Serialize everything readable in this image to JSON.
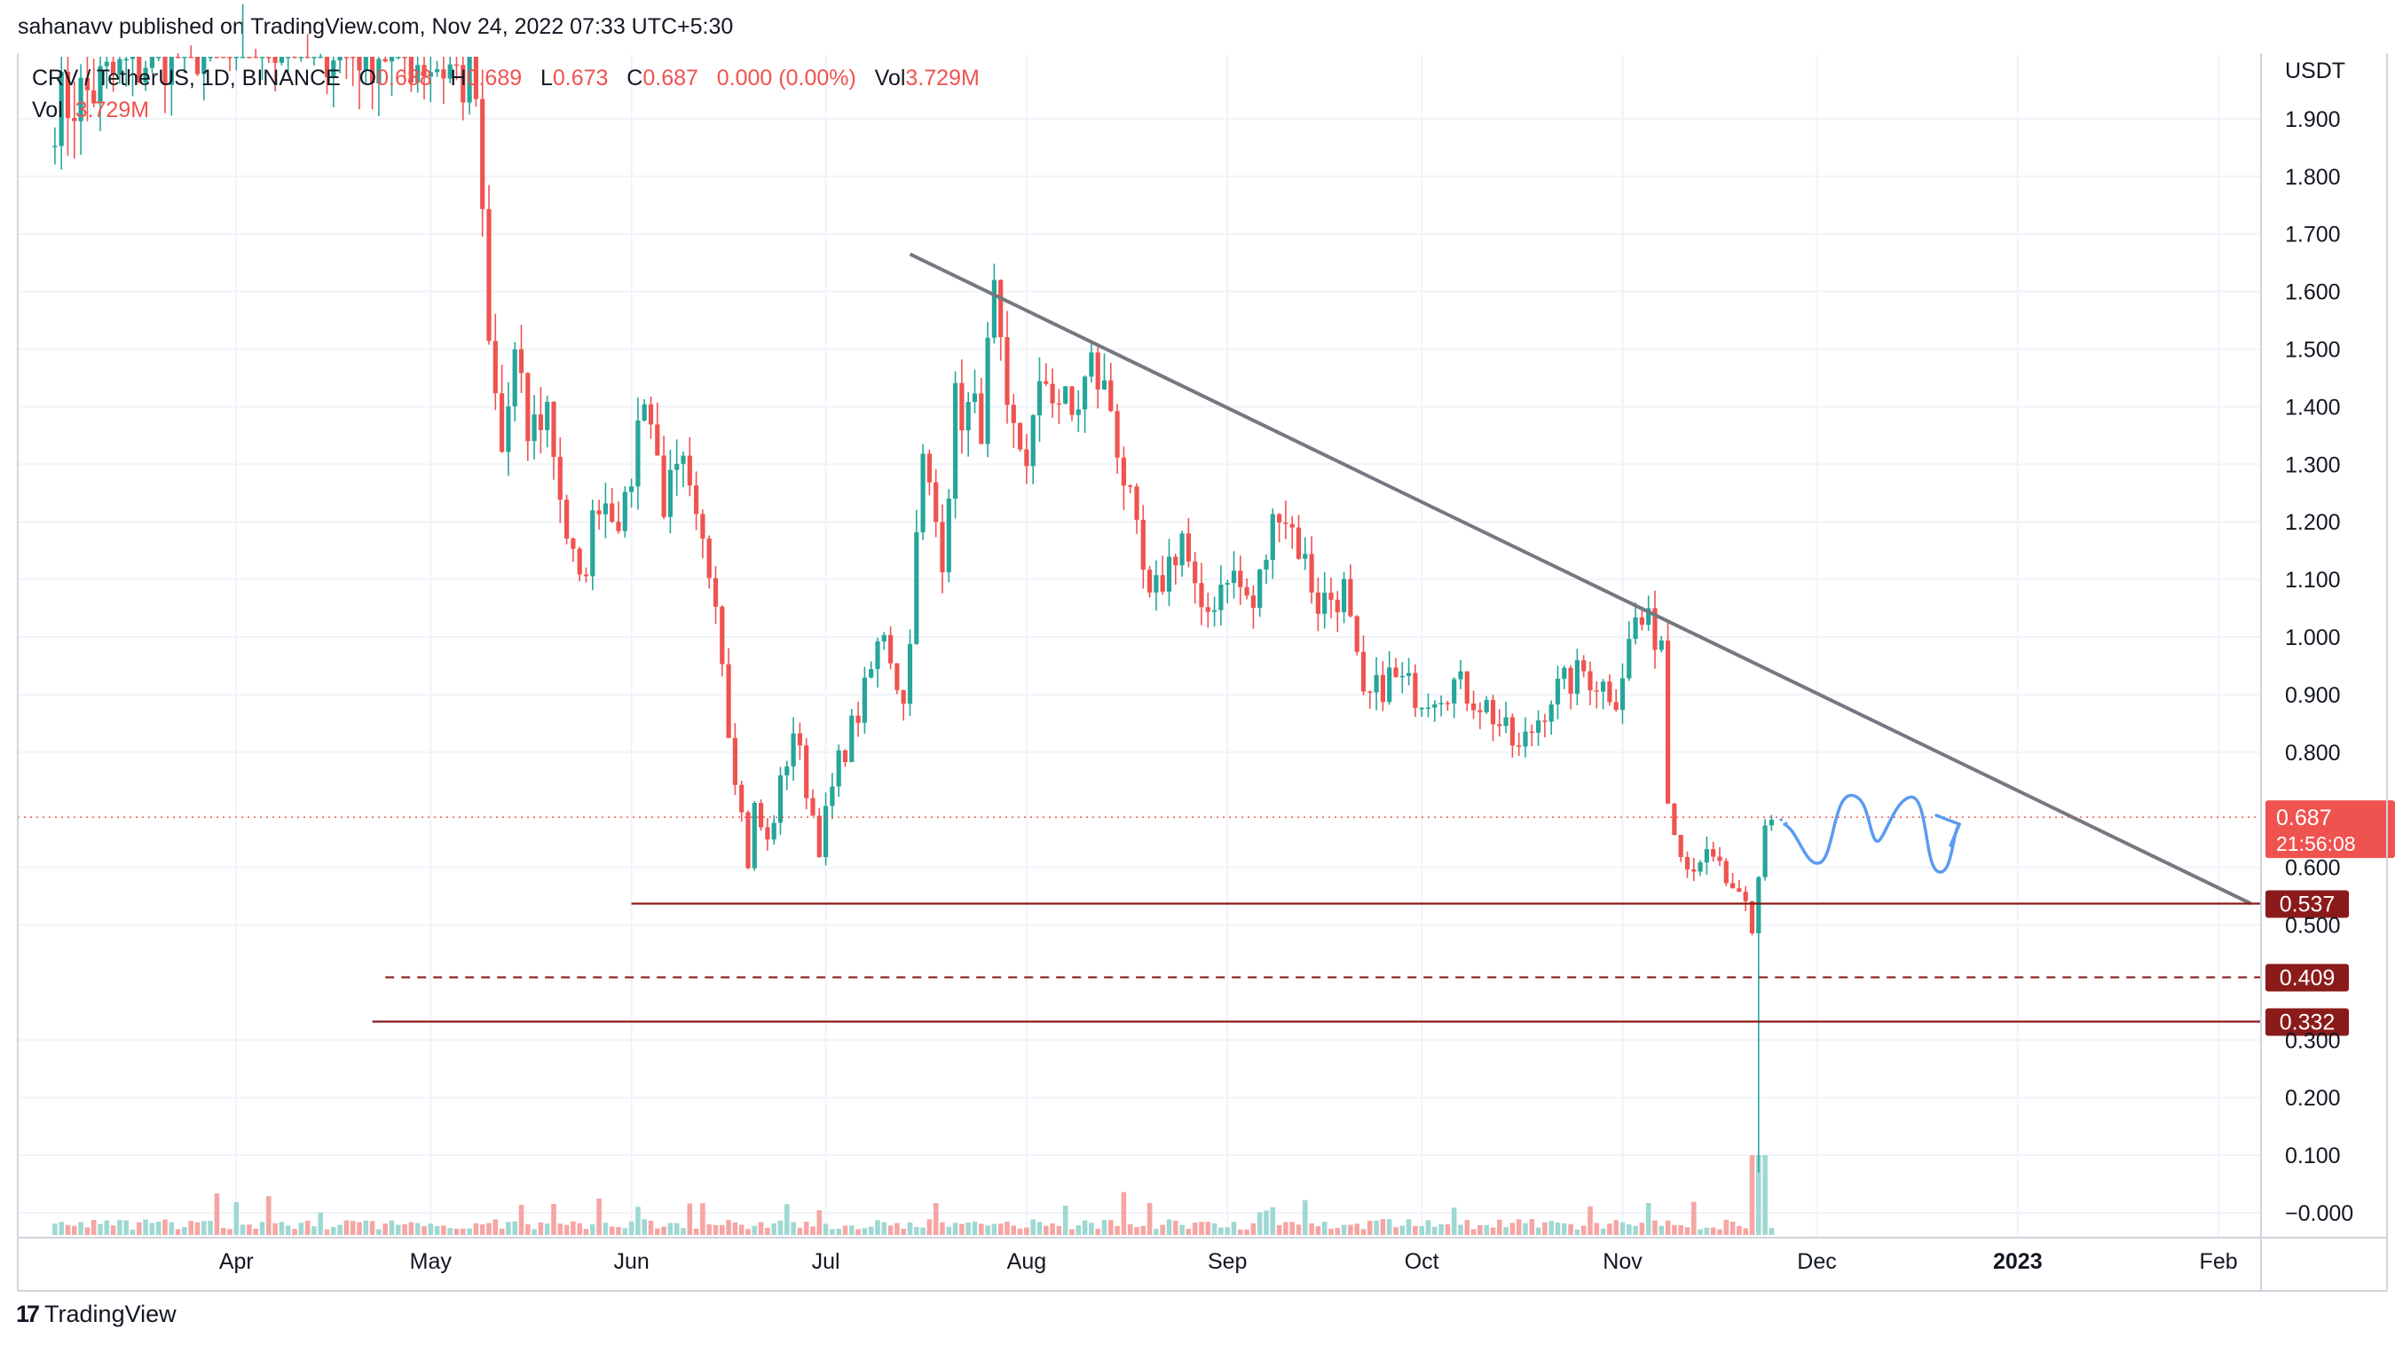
{
  "header": {
    "publisher_line": "sahanavv published on TradingView.com, Nov 24, 2022 07:33 UTC+5:30"
  },
  "legend": {
    "symbol": "CRV / TetherUS, 1D, BINANCE",
    "o_label": "O",
    "o_value": "0.688",
    "h_label": "H",
    "h_value": "0.689",
    "l_label": "L",
    "l_value": "0.673",
    "c_label": "C",
    "c_value": "0.687",
    "change": "0.000 (0.00%)",
    "vol_label": "Vol",
    "vol_value": "3.729M",
    "vol_row_label": "Vol",
    "vol_row_value": "3.729M"
  },
  "logo": {
    "text": "TradingView"
  },
  "colors": {
    "up": "#26a69a",
    "down": "#ef5350",
    "up_vol": "#9fd8d2",
    "down_vol": "#f5a6a4",
    "trendline": "#757880",
    "support": "#8b1a1a",
    "projection": "#5b9bf0",
    "price_badge": "#ef5350",
    "level_badge": "#8b1a1a",
    "grid": "#f0f3fa"
  },
  "chart_data": {
    "type": "candlestick",
    "symbol": "CRV / TetherUS",
    "interval": "1D",
    "exchange": "BINANCE",
    "ylabel": "USDT",
    "ylim": [
      -0.04,
      2.02
    ],
    "grid": true,
    "y_ticks": [
      "1.900",
      "1.800",
      "1.700",
      "1.600",
      "1.500",
      "1.400",
      "1.300",
      "1.200",
      "1.100",
      "1.000",
      "0.900",
      "0.800",
      "0.600",
      "0.500",
      "0.300",
      "0.200",
      "0.100",
      "−0.000"
    ],
    "x_ticks": [
      "Apr",
      "May",
      "Jun",
      "Jul",
      "Aug",
      "Sep",
      "Oct",
      "Nov",
      "Dec",
      "2023",
      "Feb"
    ],
    "last_price": {
      "label": "0.687",
      "value": 0.687,
      "countdown": "21:56:08"
    },
    "levels": [
      {
        "label": "0.537",
        "value": 0.537,
        "style": "solid",
        "from": "2022-06-01"
      },
      {
        "label": "0.409",
        "value": 0.409,
        "style": "dashed",
        "from": "2022-04-24"
      },
      {
        "label": "0.332",
        "value": 0.332,
        "style": "solid",
        "from": "2022-04-22"
      }
    ],
    "trendline": {
      "start": [
        "2022-07-14",
        1.665
      ],
      "end": [
        "2023-02-06",
        0.537
      ]
    },
    "projection": {
      "from": "2022-11-26",
      "to": "2022-12-23",
      "low": 0.6,
      "high": 0.725
    },
    "anchors": [
      [
        "2022-03-04",
        1.92
      ],
      [
        "2022-03-10",
        1.95
      ],
      [
        "2022-03-20",
        2.02
      ],
      [
        "2022-04-05",
        2.05
      ],
      [
        "2022-04-25",
        2.02
      ],
      [
        "2022-05-04",
        1.99
      ],
      [
        "2022-05-08",
        1.94
      ],
      [
        "2022-05-09",
        1.7
      ],
      [
        "2022-05-10",
        1.5
      ],
      [
        "2022-05-12",
        1.32
      ],
      [
        "2022-05-14",
        1.48
      ],
      [
        "2022-05-16",
        1.35
      ],
      [
        "2022-05-19",
        1.4
      ],
      [
        "2022-05-22",
        1.18
      ],
      [
        "2022-05-24",
        1.08
      ],
      [
        "2022-05-27",
        1.25
      ],
      [
        "2022-05-31",
        1.21
      ],
      [
        "2022-06-03",
        1.44
      ],
      [
        "2022-06-06",
        1.24
      ],
      [
        "2022-06-09",
        1.28
      ],
      [
        "2022-06-11",
        1.18
      ],
      [
        "2022-06-14",
        1.09
      ],
      [
        "2022-06-16",
        0.85
      ],
      [
        "2022-06-19",
        0.61
      ],
      [
        "2022-06-20",
        0.7
      ],
      [
        "2022-06-22",
        0.64
      ],
      [
        "2022-06-26",
        0.84
      ],
      [
        "2022-06-30",
        0.64
      ],
      [
        "2022-07-03",
        0.78
      ],
      [
        "2022-07-07",
        0.9
      ],
      [
        "2022-07-10",
        1.02
      ],
      [
        "2022-07-13",
        0.88
      ],
      [
        "2022-07-16",
        1.3
      ],
      [
        "2022-07-19",
        1.15
      ],
      [
        "2022-07-21",
        1.4
      ],
      [
        "2022-07-25",
        1.38
      ],
      [
        "2022-07-27",
        1.58
      ],
      [
        "2022-07-29",
        1.36
      ],
      [
        "2022-08-01",
        1.32
      ],
      [
        "2022-08-04",
        1.45
      ],
      [
        "2022-08-08",
        1.38
      ],
      [
        "2022-08-11",
        1.47
      ],
      [
        "2022-08-14",
        1.4
      ],
      [
        "2022-08-17",
        1.22
      ],
      [
        "2022-08-20",
        1.05
      ],
      [
        "2022-08-25",
        1.18
      ],
      [
        "2022-08-28",
        1.02
      ],
      [
        "2022-09-01",
        1.12
      ],
      [
        "2022-09-05",
        1.05
      ],
      [
        "2022-09-09",
        1.24
      ],
      [
        "2022-09-12",
        1.16
      ],
      [
        "2022-09-15",
        1.06
      ],
      [
        "2022-09-19",
        1.08
      ],
      [
        "2022-09-22",
        0.88
      ],
      [
        "2022-09-26",
        0.93
      ],
      [
        "2022-10-01",
        0.9
      ],
      [
        "2022-10-06",
        0.92
      ],
      [
        "2022-10-11",
        0.88
      ],
      [
        "2022-10-16",
        0.8
      ],
      [
        "2022-10-21",
        0.9
      ],
      [
        "2022-10-26",
        0.94
      ],
      [
        "2022-10-31",
        0.9
      ],
      [
        "2022-11-03",
        1.03
      ],
      [
        "2022-11-07",
        1.0
      ],
      [
        "2022-11-08",
        0.72
      ],
      [
        "2022-11-11",
        0.6
      ],
      [
        "2022-11-13",
        0.62
      ],
      [
        "2022-11-16",
        0.6
      ],
      [
        "2022-11-18",
        0.55
      ],
      [
        "2022-11-20",
        0.53
      ],
      [
        "2022-11-21",
        0.48
      ],
      [
        "2022-11-22",
        0.58
      ],
      [
        "2022-11-23",
        0.68
      ],
      [
        "2022-11-24",
        0.687
      ]
    ],
    "crash_candle": {
      "date": "2022-11-22",
      "low": 0.07
    }
  }
}
